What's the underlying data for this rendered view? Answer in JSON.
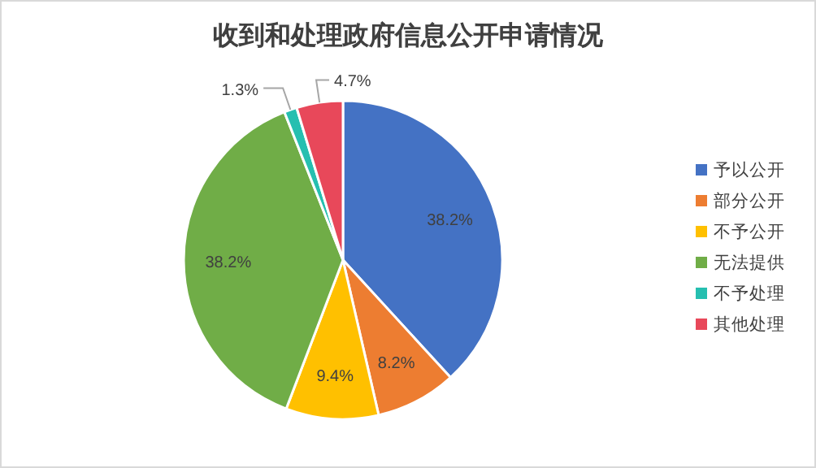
{
  "chart_data": {
    "type": "pie",
    "title": "收到和处理政府信息公开申请情况",
    "categories": [
      "予以公开",
      "部分公开",
      "不予公开",
      "无法提供",
      "不予处理",
      "其他处理"
    ],
    "values": [
      38.2,
      8.2,
      9.4,
      38.2,
      1.3,
      4.7
    ],
    "colors": [
      "#4472c4",
      "#ed7d31",
      "#ffc000",
      "#70ad47",
      "#26bfb0",
      "#e8485a"
    ],
    "value_labels": [
      "38.2%",
      "8.2%",
      "9.4%",
      "38.2%",
      "1.3%",
      "4.7%"
    ],
    "legend": "right"
  }
}
